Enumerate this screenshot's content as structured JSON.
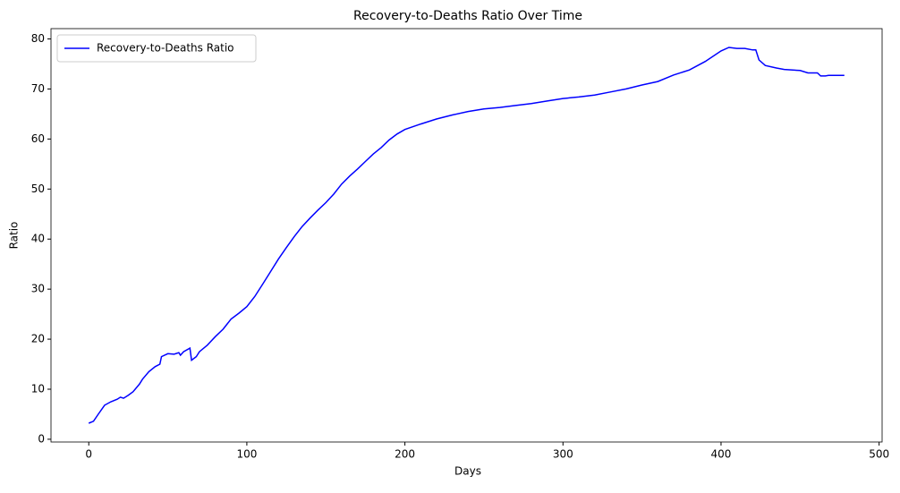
{
  "chart_data": {
    "type": "line",
    "title": "Recovery-to-Deaths Ratio Over Time",
    "xlabel": "Days",
    "ylabel": "Ratio",
    "x": [
      0,
      3,
      6,
      10,
      14,
      18,
      20,
      22,
      25,
      28,
      32,
      34,
      38,
      42,
      45,
      46,
      50,
      54,
      57,
      58,
      60,
      64,
      65,
      68,
      70,
      75,
      80,
      85,
      90,
      95,
      100,
      105,
      110,
      115,
      120,
      125,
      130,
      135,
      140,
      145,
      150,
      155,
      160,
      165,
      170,
      175,
      180,
      185,
      190,
      195,
      200,
      210,
      220,
      230,
      240,
      250,
      260,
      270,
      280,
      290,
      300,
      310,
      320,
      330,
      340,
      350,
      360,
      370,
      380,
      390,
      400,
      405,
      410,
      415,
      420,
      422,
      424,
      428,
      435,
      440,
      450,
      455,
      461,
      463,
      466,
      468,
      478
    ],
    "series": [
      {
        "name": "Recovery-to-Deaths Ratio",
        "color": "#0000ff",
        "values": [
          3.2,
          3.6,
          5,
          6.8,
          7.5,
          8.0,
          8.4,
          8.2,
          8.8,
          9.5,
          11,
          12,
          13.5,
          14.5,
          15,
          16.5,
          17.1,
          17,
          17.3,
          16.8,
          17.5,
          18.2,
          15.8,
          16.5,
          17.5,
          18.8,
          20.5,
          22,
          24,
          25.2,
          26.5,
          28.5,
          31,
          33.5,
          36,
          38.3,
          40.5,
          42.5,
          44.2,
          45.8,
          47.3,
          49,
          51,
          52.6,
          54,
          55.5,
          57,
          58.3,
          59.8,
          61,
          61.9,
          63,
          64,
          64.8,
          65.5,
          66,
          66.3,
          66.7,
          67.1,
          67.6,
          68.1,
          68.4,
          68.8,
          69.4,
          70,
          70.8,
          71.5,
          72.8,
          73.8,
          75.5,
          77.6,
          78.3,
          78.1,
          78.1,
          77.8,
          77.8,
          75.8,
          74.7,
          74.2,
          73.9,
          73.7,
          73.2,
          73.2,
          72.6,
          72.6,
          72.7,
          72.7
        ]
      }
    ],
    "xlim": [
      -23.9,
      501.9
    ],
    "ylim": [
      -0.55,
      82.06
    ],
    "xticks": [
      0,
      100,
      200,
      300,
      400,
      500
    ],
    "yticks": [
      0,
      10,
      20,
      30,
      40,
      50,
      60,
      70,
      80
    ],
    "grid": false,
    "legend": "upper-left"
  }
}
